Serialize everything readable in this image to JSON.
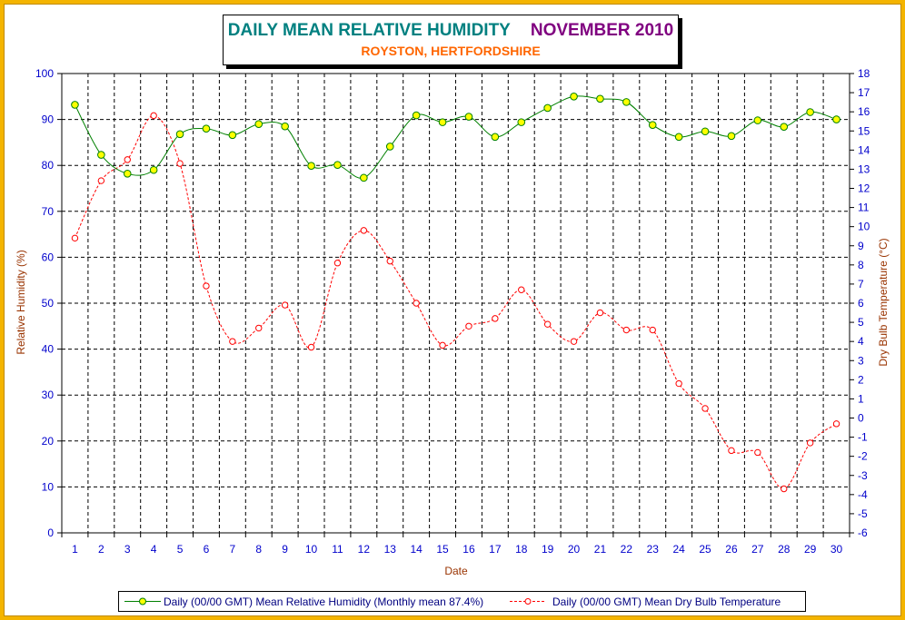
{
  "page": {
    "title": "DAILY MEAN RELATIVE HUMIDITY",
    "period": "NOVEMBER 2010",
    "subtitle": "ROYSTON, HERTFORDSHIRE"
  },
  "colors": {
    "background": "#f4b400",
    "rh_line": "#008000",
    "rh_marker": "#ffff00",
    "temp_line": "#ff0000",
    "left_axis_text": "#0000cc",
    "right_axis_text": "#0000cc",
    "axis_label": "#993300",
    "title_main": "#008080",
    "title_period": "#800080",
    "subtitle": "#ff6600"
  },
  "chart_data": {
    "type": "line",
    "title": "DAILY MEAN RELATIVE HUMIDITY",
    "subtitle": "ROYSTON, HERTFORDSHIRE",
    "xlabel": "Date",
    "ylabel": "Relative Humidity (%)",
    "y2label": "Dry Bulb Temperature (°C)",
    "x": [
      1,
      2,
      3,
      4,
      5,
      6,
      7,
      8,
      9,
      10,
      11,
      12,
      13,
      14,
      15,
      16,
      17,
      18,
      19,
      20,
      21,
      22,
      23,
      24,
      25,
      26,
      27,
      28,
      29,
      30
    ],
    "ylim": [
      0,
      100
    ],
    "yticks": [
      0,
      10,
      20,
      30,
      40,
      50,
      60,
      70,
      80,
      90,
      100
    ],
    "y2lim": [
      -6,
      18
    ],
    "y2ticks": [
      -6,
      -5,
      -4,
      -3,
      -2,
      -1,
      0,
      1,
      2,
      3,
      4,
      5,
      6,
      7,
      8,
      9,
      10,
      11,
      12,
      13,
      14,
      15,
      16,
      17,
      18
    ],
    "grid": true,
    "legend_position": "bottom",
    "series": [
      {
        "name": "Daily (00/00 GMT) Mean Relative Humidity (Monthly mean 87.4%)",
        "axis": "left",
        "style": "solid",
        "values": [
          93.2,
          82.3,
          78.2,
          79.0,
          86.8,
          88.0,
          86.6,
          89.0,
          88.5,
          79.9,
          80.1,
          77.3,
          84.1,
          90.9,
          89.4,
          90.6,
          86.2,
          89.4,
          92.5,
          95.0,
          94.5,
          93.8,
          88.8,
          86.2,
          87.4,
          86.4,
          89.8,
          88.4,
          91.6,
          90.0
        ]
      },
      {
        "name": "Daily (00/00 GMT) Mean Dry Bulb Temperature",
        "axis": "right",
        "style": "dashed",
        "values": [
          9.4,
          12.4,
          13.5,
          15.8,
          13.3,
          6.9,
          4.0,
          4.7,
          5.9,
          3.7,
          8.1,
          9.8,
          8.2,
          6.0,
          3.8,
          4.8,
          5.2,
          6.7,
          4.9,
          4.0,
          5.5,
          4.6,
          4.6,
          1.8,
          0.5,
          -1.7,
          -1.8,
          -3.7,
          -1.3,
          -0.3
        ]
      }
    ]
  }
}
